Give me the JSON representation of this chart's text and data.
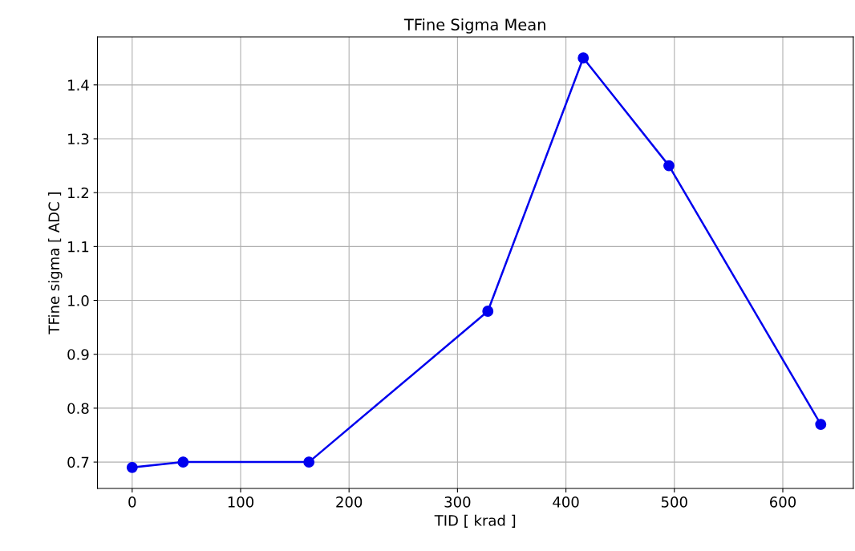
{
  "chart_data": {
    "type": "line",
    "title": "TFine Sigma Mean",
    "xlabel": "TID [ krad ]",
    "ylabel": "TFine sigma [ ADC ]",
    "x": [
      0,
      47,
      163,
      328,
      416,
      495,
      635
    ],
    "series": [
      {
        "color": "#0000ee",
        "values": [
          0.69,
          0.7,
          0.7,
          0.98,
          1.45,
          1.25,
          0.77
        ]
      }
    ],
    "xlim": [
      -32,
      665
    ],
    "xticks": [
      0,
      100,
      200,
      300,
      400,
      500,
      600
    ],
    "ylim": [
      0.651,
      1.489
    ],
    "yticks": [
      0.7,
      0.8,
      0.9,
      {
        "value": 1,
        "label": "1.0"
      },
      1.1,
      1.2,
      1.3,
      1.4
    ],
    "grid": true,
    "marker": "circle",
    "line_style": "solid"
  }
}
